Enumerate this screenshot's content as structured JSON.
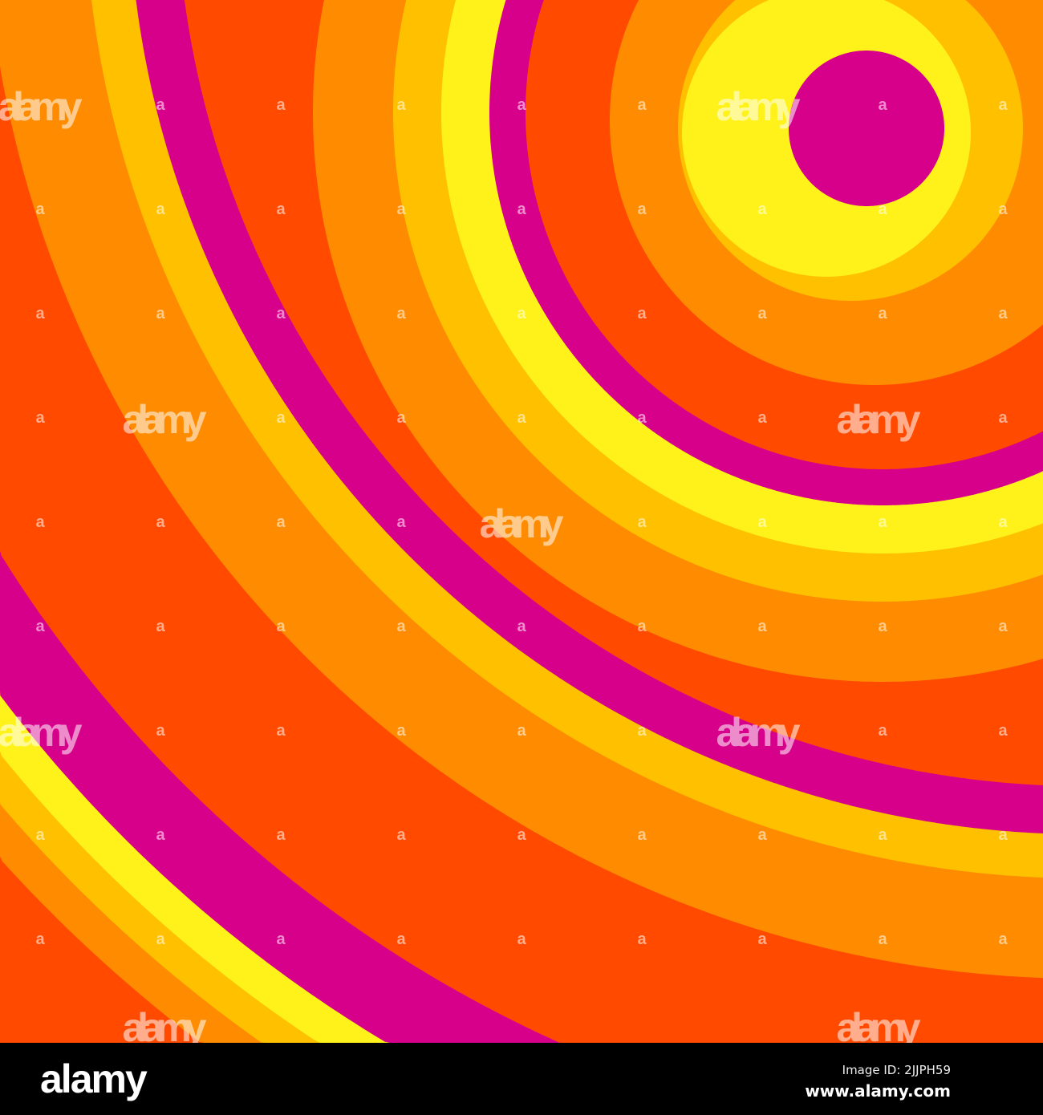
{
  "artwork": {
    "background": "#FF4A00",
    "colors": {
      "red_orange": "#FF4A00",
      "orange": "#FF8C00",
      "gold": "#FFC000",
      "yellow": "#FFF21A",
      "magenta": "#D6008A"
    }
  },
  "watermark": {
    "word": "alamy",
    "mark": "a"
  },
  "footer": {
    "logo": "alamy",
    "image_id": "Image ID: 2JJPH59",
    "site": "www.alamy.com"
  }
}
